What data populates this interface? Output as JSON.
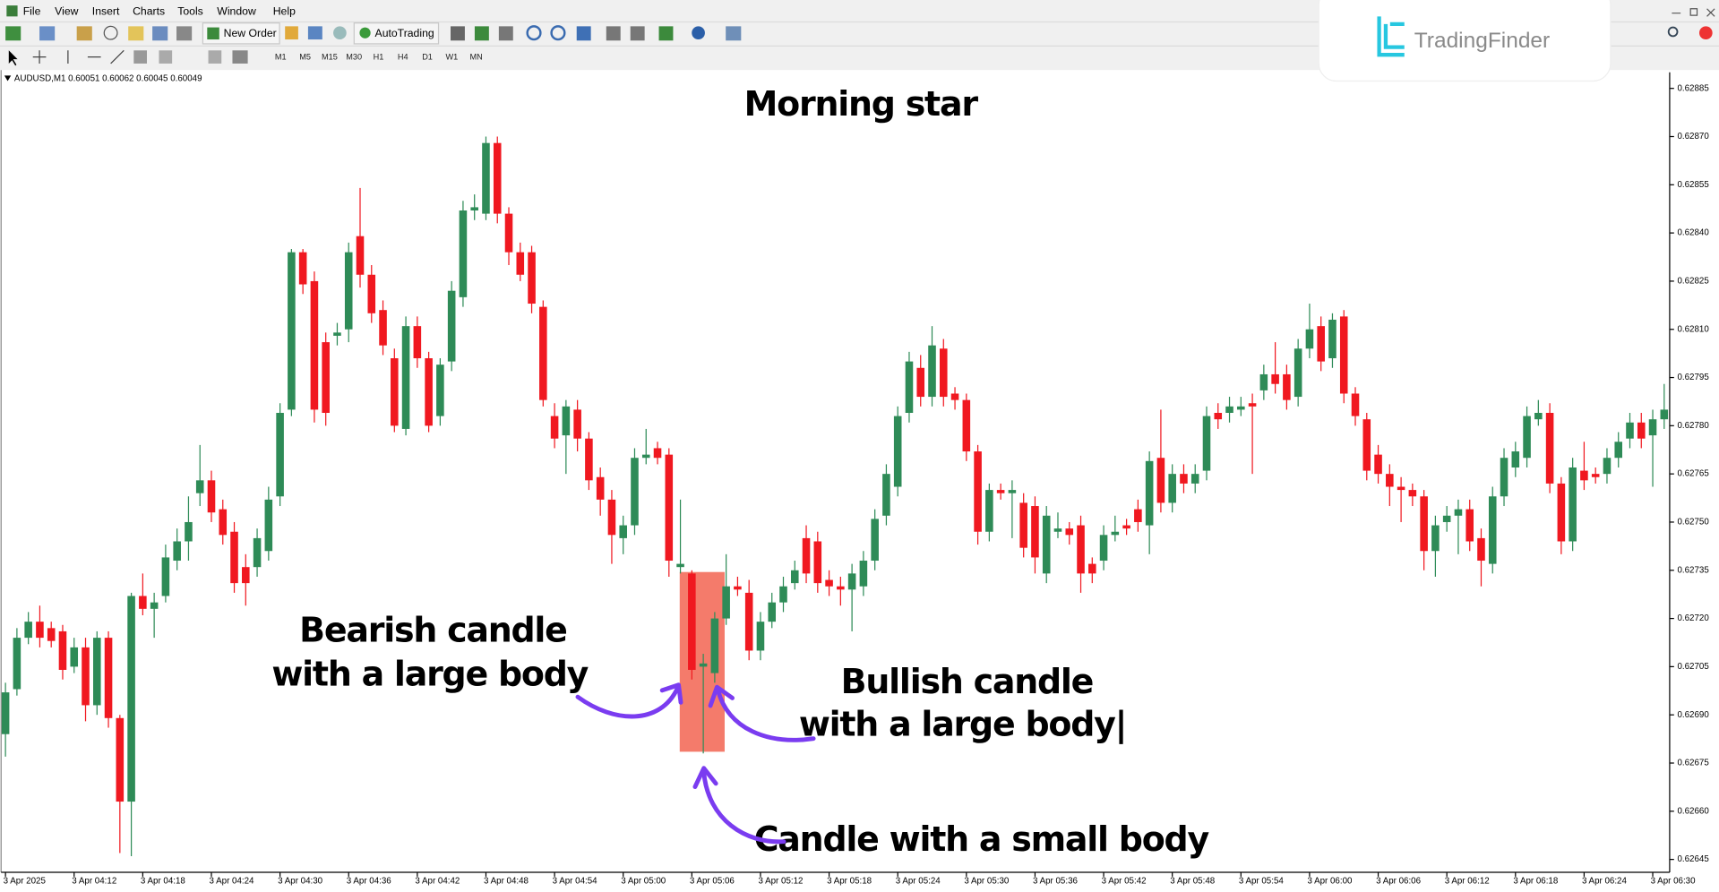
{
  "menu": [
    "File",
    "View",
    "Insert",
    "Charts",
    "Tools",
    "Window",
    "Help"
  ],
  "toolbar": {
    "new_order": "New Order",
    "auto_trading": "AutoTrading"
  },
  "timeframes": [
    "M1",
    "M5",
    "M15",
    "M30",
    "H1",
    "H4",
    "D1",
    "W1",
    "MN"
  ],
  "symbol_info": "AUDUSD,M1  0.60051 0.60062 0.60045 0.60049",
  "logo": "TradingFinder",
  "annotations": {
    "bearish": [
      "Bearish candle",
      "with a large body"
    ],
    "bullish": [
      "Bullish candle",
      "with a large body|"
    ],
    "small": "Candle with a small body"
  },
  "chart_data": {
    "type": "candlestick",
    "title": "Morning star",
    "up_color": "#2e8b57",
    "down_color": "#f01820",
    "highlight_color": "#f47b6b",
    "categories": [
      "3 Apr 2025",
      null,
      null,
      null,
      null,
      null,
      "3 Apr 04:12",
      null,
      null,
      null,
      null,
      null,
      "3 Apr 04:18",
      null,
      null,
      null,
      null,
      null,
      "3 Apr 04:24",
      null,
      null,
      null,
      null,
      null,
      "3 Apr 04:30",
      null,
      null,
      null,
      null,
      null,
      "3 Apr 04:36",
      null,
      null,
      null,
      null,
      null,
      "3 Apr 04:42",
      null,
      null,
      null,
      null,
      null,
      "3 Apr 04:48",
      null,
      null,
      null,
      null,
      null,
      "3 Apr 04:54",
      null,
      null,
      null,
      null,
      null,
      "3 Apr 05:00",
      null,
      null,
      null,
      null,
      null,
      "3 Apr 05:06",
      null,
      null,
      null,
      null,
      null,
      "3 Apr 05:12",
      null,
      null,
      null,
      null,
      null,
      "3 Apr 05:18",
      null,
      null,
      null,
      null,
      null,
      "3 Apr 05:24",
      null,
      null,
      null,
      null,
      null,
      "3 Apr 05:30",
      null,
      null,
      null,
      null,
      null,
      "3 Apr 05:36",
      null,
      null,
      null,
      null,
      null,
      "3 Apr 05:42",
      null,
      null,
      null,
      null,
      null,
      "3 Apr 05:48",
      null,
      null,
      null,
      null,
      null,
      "3 Apr 05:54",
      null,
      null,
      null,
      null,
      null,
      "3 Apr 06:00",
      null,
      null,
      null,
      null,
      null,
      "3 Apr 06:06",
      null,
      null,
      null,
      null,
      null,
      "3 Apr 06:12",
      null,
      null,
      null,
      null,
      null,
      "3 Apr 06:18",
      null,
      null,
      null,
      null,
      null,
      "3 Apr 06:24",
      null,
      null,
      null,
      null,
      null,
      "3 Apr 06:30",
      null
    ],
    "open": [
      0.62684,
      0.62698,
      0.62714,
      0.62719,
      0.62717,
      0.62716,
      0.62705,
      0.62711,
      0.62693,
      0.62714,
      0.62689,
      0.62663,
      0.62727,
      0.62723,
      0.62727,
      0.62738,
      0.62744,
      0.62759,
      0.62763,
      0.62754,
      0.62747,
      0.62736,
      0.62736,
      0.62741,
      0.62758,
      0.62785,
      0.62834,
      0.62825,
      0.62806,
      0.62808,
      0.6281,
      0.62839,
      0.62827,
      0.62816,
      0.62801,
      0.62779,
      0.62811,
      0.62801,
      0.62783,
      0.628,
      0.6282,
      0.62847,
      0.62846,
      0.62868,
      0.62846,
      0.62834,
      0.62834,
      0.62817,
      0.62783,
      0.62777,
      0.62785,
      0.62776,
      0.62764,
      0.62757,
      0.62745,
      0.62749,
      0.6277,
      0.62773,
      0.62771,
      0.62736,
      0.62734,
      0.62705,
      0.62703,
      0.6272,
      0.6273,
      0.62728,
      0.6271,
      0.62719,
      0.62725,
      0.62731,
      0.62745,
      0.62744,
      0.62732,
      0.6273,
      0.62729,
      0.6273,
      0.62738,
      0.62752,
      0.62761,
      0.62784,
      0.62798,
      0.62789,
      0.62804,
      0.6279,
      0.62788,
      0.62772,
      0.62747,
      0.6276,
      0.62759,
      0.62756,
      0.62755,
      0.62734,
      0.62747,
      0.62748,
      0.62749,
      0.62737,
      0.62738,
      0.62746,
      0.62749,
      0.62754,
      0.62749,
      0.6277,
      0.62756,
      0.62765,
      0.62762,
      0.62766,
      0.62784,
      0.62784,
      0.62785,
      0.62787,
      0.62791,
      0.62796,
      0.62796,
      0.62789,
      0.62804,
      0.62811,
      0.62801,
      0.62814,
      0.6279,
      0.62782,
      0.62771,
      0.62765,
      0.62761,
      0.6276,
      0.62758,
      0.62741,
      0.6275,
      0.62752,
      0.62754,
      0.62745,
      0.62737,
      0.62758,
      0.62767,
      0.6277,
      0.62782,
      0.62784,
      0.62762,
      0.62744,
      0.62766,
      0.62765,
      0.62765,
      0.6277,
      0.62776,
      0.62781,
      0.62777,
      0.62782
    ],
    "high": [
      0.627,
      0.62717,
      0.62722,
      0.62724,
      0.62719,
      0.62718,
      0.62714,
      0.62714,
      0.62716,
      0.62716,
      0.6269,
      0.62728,
      0.62734,
      0.62728,
      0.62743,
      0.62748,
      0.62758,
      0.62774,
      0.62766,
      0.62757,
      0.6275,
      0.6274,
      0.62748,
      0.62761,
      0.62787,
      0.62835,
      0.62835,
      0.62828,
      0.62809,
      0.62812,
      0.62837,
      0.62854,
      0.6283,
      0.62819,
      0.62804,
      0.62814,
      0.62814,
      0.62803,
      0.62801,
      0.62825,
      0.6285,
      0.62852,
      0.6287,
      0.6287,
      0.62848,
      0.62837,
      0.62836,
      0.62819,
      0.62787,
      0.62788,
      0.62788,
      0.62778,
      0.62767,
      0.6276,
      0.62752,
      0.62773,
      0.62779,
      0.62775,
      0.62773,
      0.62757,
      0.62735,
      0.62709,
      0.62722,
      0.6274,
      0.62733,
      0.62732,
      0.62722,
      0.62728,
      0.62733,
      0.62738,
      0.62749,
      0.62747,
      0.62735,
      0.62733,
      0.62737,
      0.62741,
      0.62754,
      0.62768,
      0.62786,
      0.62803,
      0.62802,
      0.62811,
      0.62807,
      0.62792,
      0.6279,
      0.62774,
      0.62762,
      0.62762,
      0.62763,
      0.62759,
      0.62758,
      0.62755,
      0.62753,
      0.6275,
      0.62752,
      0.62739,
      0.62749,
      0.62752,
      0.62751,
      0.62757,
      0.62772,
      0.62785,
      0.62768,
      0.62768,
      0.62768,
      0.62786,
      0.62787,
      0.62789,
      0.62789,
      0.6279,
      0.62799,
      0.62806,
      0.62799,
      0.62807,
      0.62818,
      0.62814,
      0.62815,
      0.62816,
      0.62792,
      0.62784,
      0.62774,
      0.62768,
      0.62764,
      0.62762,
      0.6276,
      0.62752,
      0.62755,
      0.62757,
      0.62757,
      0.62748,
      0.62761,
      0.62773,
      0.62775,
      0.62786,
      0.62788,
      0.62787,
      0.62764,
      0.6277,
      0.62775,
      0.62767,
      0.62773,
      0.62778,
      0.62784,
      0.62784,
      0.62785,
      0.62793
    ],
    "low": [
      0.62677,
      0.62696,
      0.62712,
      0.62711,
      0.62711,
      0.62701,
      0.62703,
      0.62688,
      0.6269,
      0.62686,
      0.62647,
      0.62646,
      0.62721,
      0.62714,
      0.62725,
      0.62735,
      0.62738,
      0.62755,
      0.6275,
      0.62743,
      0.62728,
      0.62724,
      0.62733,
      0.62738,
      0.62755,
      0.62783,
      0.62821,
      0.62781,
      0.6278,
      0.62805,
      0.62806,
      0.62823,
      0.62812,
      0.62802,
      0.62778,
      0.62777,
      0.62798,
      0.62778,
      0.6278,
      0.62797,
      0.62817,
      0.62844,
      0.62844,
      0.62843,
      0.6283,
      0.62825,
      0.62815,
      0.62786,
      0.62773,
      0.62765,
      0.62772,
      0.6276,
      0.62752,
      0.62737,
      0.6274,
      0.62746,
      0.62768,
      0.62768,
      0.62733,
      0.62734,
      0.62701,
      0.62678,
      0.627,
      0.62718,
      0.62727,
      0.62707,
      0.62707,
      0.62717,
      0.62722,
      0.62729,
      0.62731,
      0.62728,
      0.62727,
      0.62724,
      0.62716,
      0.62727,
      0.62735,
      0.62749,
      0.62758,
      0.62781,
      0.62786,
      0.62786,
      0.62786,
      0.62785,
      0.62769,
      0.62743,
      0.62744,
      0.62757,
      0.62745,
      0.62739,
      0.62734,
      0.62731,
      0.62745,
      0.62743,
      0.62728,
      0.62731,
      0.62735,
      0.62744,
      0.62746,
      0.62747,
      0.6274,
      0.62753,
      0.62753,
      0.62759,
      0.62759,
      0.62763,
      0.62779,
      0.62781,
      0.62783,
      0.62765,
      0.62788,
      0.6279,
      0.62785,
      0.62786,
      0.62801,
      0.62797,
      0.62798,
      0.62787,
      0.6278,
      0.62763,
      0.62762,
      0.62755,
      0.6275,
      0.62755,
      0.62735,
      0.62733,
      0.62747,
      0.6274,
      0.62741,
      0.6273,
      0.62734,
      0.62755,
      0.62764,
      0.62767,
      0.6278,
      0.62759,
      0.6274,
      0.62741,
      0.6276,
      0.62762,
      0.62762,
      0.62767,
      0.62773,
      0.62773,
      0.62761,
      0.62779
    ],
    "close": [
      0.62697,
      0.62714,
      0.62719,
      0.62714,
      0.62713,
      0.62704,
      0.62711,
      0.62693,
      0.62714,
      0.62689,
      0.62663,
      0.62727,
      0.62723,
      0.62725,
      0.62739,
      0.62744,
      0.6275,
      0.62763,
      0.62753,
      0.62746,
      0.62731,
      0.62731,
      0.62745,
      0.62757,
      0.62784,
      0.62834,
      0.62824,
      0.62785,
      0.62784,
      0.62809,
      0.62834,
      0.62827,
      0.62815,
      0.62805,
      0.6278,
      0.62811,
      0.62801,
      0.6278,
      0.62799,
      0.62822,
      0.62847,
      0.62848,
      0.62868,
      0.62846,
      0.62834,
      0.62827,
      0.62818,
      0.62788,
      0.62776,
      0.62786,
      0.62776,
      0.62763,
      0.62757,
      0.62746,
      0.62749,
      0.6277,
      0.62771,
      0.6277,
      0.62738,
      0.62737,
      0.62704,
      0.62706,
      0.6272,
      0.6273,
      0.62729,
      0.6271,
      0.62719,
      0.62725,
      0.6273,
      0.62735,
      0.62734,
      0.62731,
      0.6273,
      0.62729,
      0.62734,
      0.62738,
      0.62751,
      0.62765,
      0.62783,
      0.628,
      0.62789,
      0.62805,
      0.62789,
      0.62788,
      0.62772,
      0.62747,
      0.6276,
      0.62759,
      0.6276,
      0.62742,
      0.62739,
      0.62752,
      0.62748,
      0.62746,
      0.62734,
      0.62734,
      0.62746,
      0.62747,
      0.62748,
      0.6275,
      0.62769,
      0.62756,
      0.62765,
      0.62762,
      0.62765,
      0.62783,
      0.62782,
      0.62786,
      0.62786,
      0.62786,
      0.62796,
      0.62793,
      0.62788,
      0.62804,
      0.6281,
      0.628,
      0.62813,
      0.6279,
      0.62783,
      0.62766,
      0.62765,
      0.62761,
      0.6276,
      0.62758,
      0.62741,
      0.62749,
      0.62752,
      0.62754,
      0.62744,
      0.62738,
      0.62758,
      0.6277,
      0.62772,
      0.62783,
      0.62784,
      0.62762,
      0.62744,
      0.62767,
      0.62763,
      0.62764,
      0.6277,
      0.62775,
      0.62781,
      0.62776,
      0.62782,
      0.62785
    ],
    "ylim": [
      0.62641,
      0.6289
    ],
    "yticks": [
      0.62885,
      {
        "value": 0.6287,
        "label": "0.62870"
      },
      0.62855,
      {
        "value": 0.6284,
        "label": "0.62840"
      },
      0.62825,
      {
        "value": 0.6281,
        "label": "0.62810"
      },
      0.62795,
      {
        "value": 0.6278,
        "label": "0.62780"
      },
      0.62765,
      {
        "value": 0.6275,
        "label": "0.62750"
      },
      0.62735,
      {
        "value": 0.6272,
        "label": "0.62720"
      },
      0.62705,
      {
        "value": 0.6269,
        "label": "0.62690"
      },
      0.62675,
      {
        "value": 0.6266,
        "label": "0.62660"
      },
      0.62645
    ],
    "grid": false
  }
}
